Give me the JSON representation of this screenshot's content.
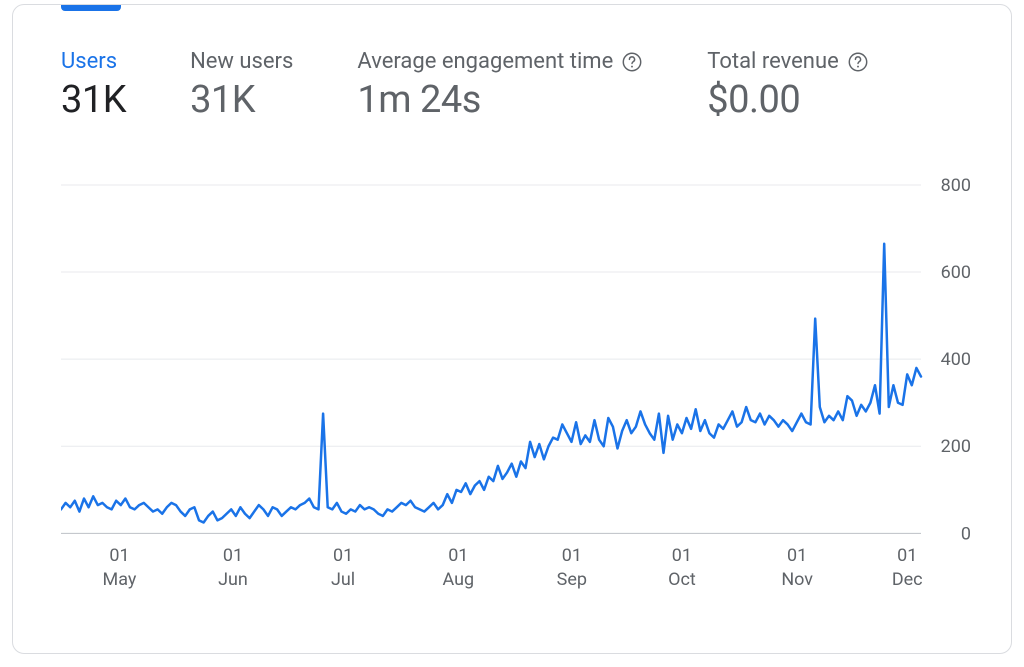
{
  "metrics": [
    {
      "key": "users",
      "label": "Users",
      "value": "31K",
      "active": true,
      "help": false
    },
    {
      "key": "new_users",
      "label": "New users",
      "value": "31K",
      "active": false,
      "help": false
    },
    {
      "key": "avg_engage",
      "label": "Average engagement time",
      "value": "1m 24s",
      "active": false,
      "help": true
    },
    {
      "key": "total_revenue",
      "label": "Total revenue",
      "value": "$0.00",
      "active": false,
      "help": true
    }
  ],
  "chart": {
    "type": "line",
    "line_color": "#1a73e8",
    "line_width": 2.5,
    "grid_color": "#e8eaed",
    "baseline_color": "#bdc1c6",
    "axis_label_color": "#5f6368",
    "axis_fontsize": 18,
    "background_color": "#ffffff",
    "y": {
      "min": 0,
      "max": 800,
      "ticks": [
        0,
        200,
        400,
        600,
        800
      ]
    },
    "x": {
      "ticks": [
        {
          "pos": 0.068,
          "top": "01",
          "bottom": "May"
        },
        {
          "pos": 0.2,
          "top": "01",
          "bottom": "Jun"
        },
        {
          "pos": 0.328,
          "top": "01",
          "bottom": "Jul"
        },
        {
          "pos": 0.462,
          "top": "01",
          "bottom": "Aug"
        },
        {
          "pos": 0.594,
          "top": "01",
          "bottom": "Sep"
        },
        {
          "pos": 0.722,
          "top": "01",
          "bottom": "Oct"
        },
        {
          "pos": 0.856,
          "top": "01",
          "bottom": "Nov"
        },
        {
          "pos": 0.984,
          "top": "01",
          "bottom": "Dec"
        }
      ]
    },
    "values": [
      55,
      70,
      60,
      75,
      50,
      80,
      60,
      85,
      65,
      70,
      60,
      55,
      75,
      65,
      80,
      60,
      55,
      65,
      70,
      60,
      50,
      55,
      45,
      60,
      70,
      65,
      50,
      40,
      55,
      60,
      30,
      25,
      40,
      50,
      30,
      35,
      45,
      55,
      40,
      60,
      45,
      35,
      50,
      65,
      55,
      40,
      60,
      55,
      40,
      50,
      60,
      55,
      65,
      70,
      80,
      60,
      55,
      275,
      60,
      55,
      70,
      50,
      45,
      55,
      50,
      65,
      55,
      60,
      55,
      45,
      40,
      55,
      50,
      60,
      70,
      65,
      75,
      60,
      55,
      50,
      60,
      70,
      55,
      65,
      90,
      70,
      100,
      95,
      115,
      90,
      110,
      120,
      100,
      130,
      120,
      155,
      125,
      140,
      160,
      130,
      165,
      150,
      210,
      175,
      205,
      170,
      200,
      220,
      215,
      250,
      230,
      210,
      255,
      205,
      225,
      210,
      260,
      215,
      200,
      265,
      245,
      195,
      235,
      260,
      230,
      245,
      280,
      250,
      230,
      215,
      275,
      185,
      270,
      215,
      250,
      230,
      265,
      240,
      285,
      235,
      260,
      230,
      220,
      250,
      240,
      260,
      280,
      245,
      255,
      290,
      260,
      255,
      275,
      250,
      270,
      260,
      245,
      260,
      250,
      235,
      255,
      275,
      255,
      250,
      493,
      290,
      255,
      270,
      260,
      280,
      260,
      315,
      305,
      270,
      295,
      280,
      300,
      340,
      275,
      665,
      290,
      340,
      300,
      295,
      365,
      340,
      380,
      360
    ]
  }
}
